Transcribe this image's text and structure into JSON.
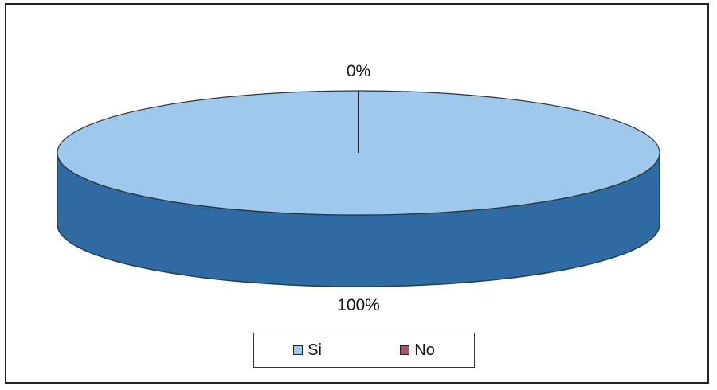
{
  "chart_data": {
    "type": "pie",
    "categories": [
      "Si",
      "No"
    ],
    "values": [
      100,
      0
    ],
    "data_labels": [
      "100%",
      "0%"
    ],
    "colors": [
      "#9ec8ec",
      "#a05870"
    ],
    "side_color": "#2f6aa3",
    "edge_color": "#1e3f66",
    "style": "3d",
    "legend_position": "bottom"
  }
}
